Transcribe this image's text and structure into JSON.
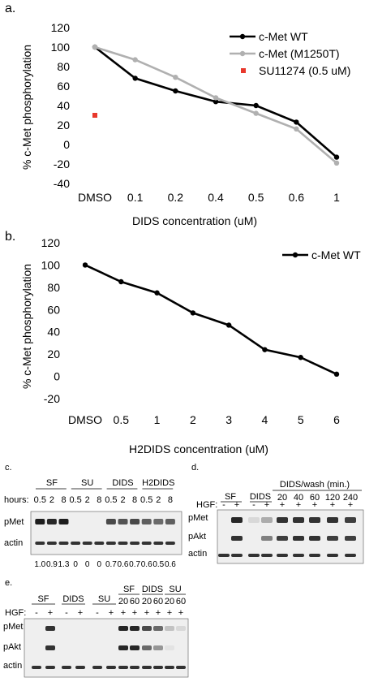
{
  "panel_labels": {
    "a": "a.",
    "b": "b.",
    "c": "c.",
    "d": "d.",
    "e": "e."
  },
  "chart_data": [
    {
      "type": "line",
      "categories": [
        "DMSO",
        "0.1",
        "0.2",
        "0.4",
        "0.5",
        "0.6",
        "1"
      ],
      "series": [
        {
          "name": "c-Met WT",
          "color": "#000000",
          "values": [
            100,
            68,
            55,
            44,
            40,
            23,
            -13
          ]
        },
        {
          "name": "c-Met (M1250T)",
          "color": "#b0b0b0",
          "values": [
            100,
            87,
            69,
            48,
            32,
            16,
            -19
          ]
        },
        {
          "name": "SU11274 (0.5 uM)",
          "color": "#e8382c",
          "kind": "point",
          "values": [
            30,
            null,
            null,
            null,
            null,
            null,
            null
          ]
        }
      ],
      "xlabel": "DIDS concentration (uM)",
      "ylabel": "% c-Met phosphorylation",
      "ylim": [
        -40,
        120
      ],
      "yticks": [
        "120",
        "100",
        "80",
        "60",
        "40",
        "20",
        "0",
        "-20",
        "-40"
      ],
      "legend": "top-right"
    },
    {
      "type": "line",
      "categories": [
        "DMSO",
        "0.5",
        "1",
        "2",
        "3",
        "4",
        "5",
        "6"
      ],
      "series": [
        {
          "name": "c-Met WT",
          "color": "#000000",
          "values": [
            100,
            85,
            75,
            57,
            46,
            24,
            17,
            2
          ]
        }
      ],
      "xlabel": "H2DIDS concentration (uM)",
      "ylabel": "% c-Met phosphorylation",
      "ylim": [
        -20,
        120
      ],
      "yticks": [
        "120",
        "100",
        "80",
        "60",
        "40",
        "20",
        "0",
        "-20"
      ],
      "legend": "top-right"
    }
  ],
  "blot_c": {
    "hours_label": "hours:",
    "groups": [
      {
        "name": "SF",
        "times": [
          "0.5",
          "2",
          "8"
        ]
      },
      {
        "name": "SU",
        "times": [
          "0.5",
          "2",
          "8"
        ]
      },
      {
        "name": "DIDS",
        "times": [
          "0.5",
          "2",
          "8"
        ]
      },
      {
        "name": "H2DIDS",
        "times": [
          "0.5",
          "2",
          "8"
        ]
      }
    ],
    "rows": [
      "pMet",
      "actin"
    ],
    "quant": [
      "1.0",
      "0.9",
      "1.3",
      "0",
      "0",
      "0",
      "0.7",
      "0.6",
      "0.7",
      "0.6",
      "0.5",
      "0.6"
    ]
  },
  "blot_d": {
    "hgf_label": "HGF:",
    "header": "DIDS/wash (min.)",
    "groups": [
      "SF",
      "DIDS"
    ],
    "times": [
      "20",
      "40",
      "60",
      "120",
      "240"
    ],
    "hgf": [
      "-",
      "+",
      "-",
      "+",
      "+",
      "+",
      "+",
      "+",
      "+"
    ],
    "rows": [
      "pMet",
      "pAkt",
      "actin"
    ]
  },
  "blot_e": {
    "hgf_label": "HGF:",
    "groups": [
      "SF",
      "DIDS",
      "SU",
      "SF",
      "DIDS",
      "SU"
    ],
    "times": [
      "20",
      "60",
      "20",
      "60",
      "20",
      "60"
    ],
    "hgf": [
      "-",
      "+",
      "-",
      "+",
      "-",
      "+",
      "+",
      "+",
      "+",
      "+",
      "+",
      "+"
    ],
    "rows": [
      "pMet",
      "pAkt",
      "actin"
    ]
  }
}
